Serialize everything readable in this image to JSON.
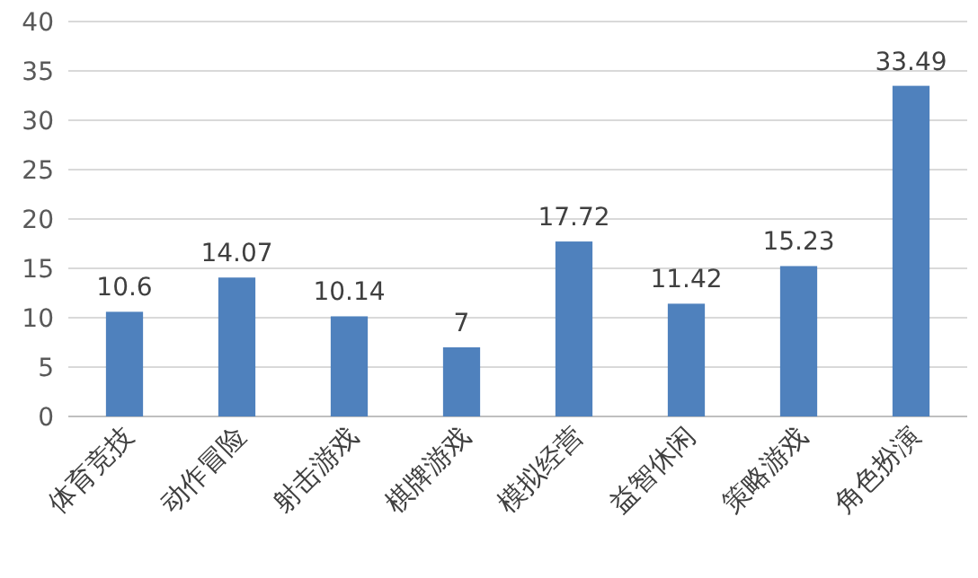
{
  "chart_data": {
    "type": "bar",
    "categories": [
      "体育竞技",
      "动作冒险",
      "射击游戏",
      "棋牌游戏",
      "模拟经营",
      "益智休闲",
      "策略游戏",
      "角色扮演"
    ],
    "values": [
      10.6,
      14.07,
      10.14,
      7,
      17.72,
      11.42,
      15.23,
      33.49
    ],
    "color": "#4f81bd",
    "ylim": [
      0,
      40
    ],
    "yticks": [
      0,
      5,
      10,
      15,
      20,
      25,
      30,
      35,
      40
    ],
    "grid": "y",
    "data_labels": true
  }
}
